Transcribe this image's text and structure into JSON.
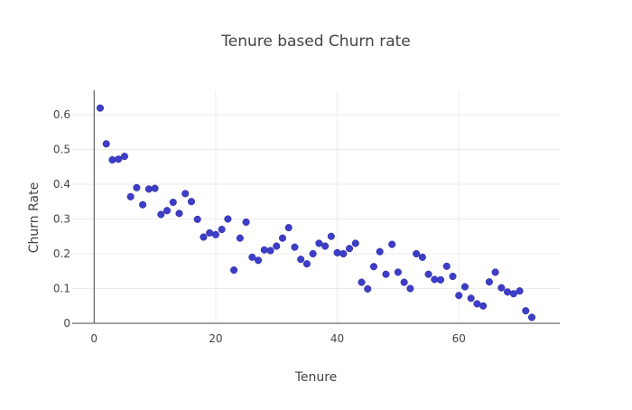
{
  "chart_data": {
    "type": "scatter",
    "title": "Tenure based Churn rate",
    "xlabel": "Tenure",
    "ylabel": "Churn Rate",
    "xlim": [
      -3.6,
      76.6
    ],
    "ylim": [
      0,
      0.67
    ],
    "xticks": [
      0,
      20,
      40,
      60
    ],
    "yticks": [
      0,
      0.1,
      0.2,
      0.3,
      0.4,
      0.5,
      0.6
    ],
    "xticklabels": [
      "0",
      "20",
      "40",
      "60"
    ],
    "yticklabels": [
      "0",
      "0.1",
      "0.2",
      "0.3",
      "0.4",
      "0.5",
      "0.6"
    ],
    "grid": true,
    "marker_color": "#3d3dc8",
    "x": [
      1,
      2,
      3,
      4,
      5,
      6,
      7,
      8,
      9,
      10,
      11,
      12,
      13,
      14,
      15,
      16,
      17,
      18,
      19,
      20,
      21,
      22,
      23,
      24,
      25,
      26,
      27,
      28,
      29,
      30,
      31,
      32,
      33,
      34,
      35,
      36,
      37,
      38,
      39,
      40,
      41,
      42,
      43,
      44,
      45,
      46,
      47,
      48,
      49,
      50,
      51,
      52,
      53,
      54,
      55,
      56,
      57,
      58,
      59,
      60,
      61,
      62,
      63,
      64,
      65,
      66,
      67,
      68,
      69,
      70,
      71,
      72
    ],
    "y": [
      0.619,
      0.516,
      0.47,
      0.472,
      0.48,
      0.364,
      0.39,
      0.341,
      0.386,
      0.388,
      0.313,
      0.324,
      0.348,
      0.316,
      0.373,
      0.35,
      0.299,
      0.248,
      0.26,
      0.255,
      0.27,
      0.3,
      0.153,
      0.245,
      0.291,
      0.19,
      0.181,
      0.211,
      0.209,
      0.222,
      0.245,
      0.275,
      0.219,
      0.184,
      0.171,
      0.2,
      0.23,
      0.222,
      0.25,
      0.203,
      0.2,
      0.215,
      0.23,
      0.118,
      0.099,
      0.163,
      0.206,
      0.141,
      0.227,
      0.147,
      0.118,
      0.1,
      0.2,
      0.19,
      0.141,
      0.126,
      0.125,
      0.164,
      0.135,
      0.08,
      0.105,
      0.072,
      0.056,
      0.05,
      0.119,
      0.147,
      0.102,
      0.09,
      0.085,
      0.093,
      0.036,
      0.017
    ]
  }
}
